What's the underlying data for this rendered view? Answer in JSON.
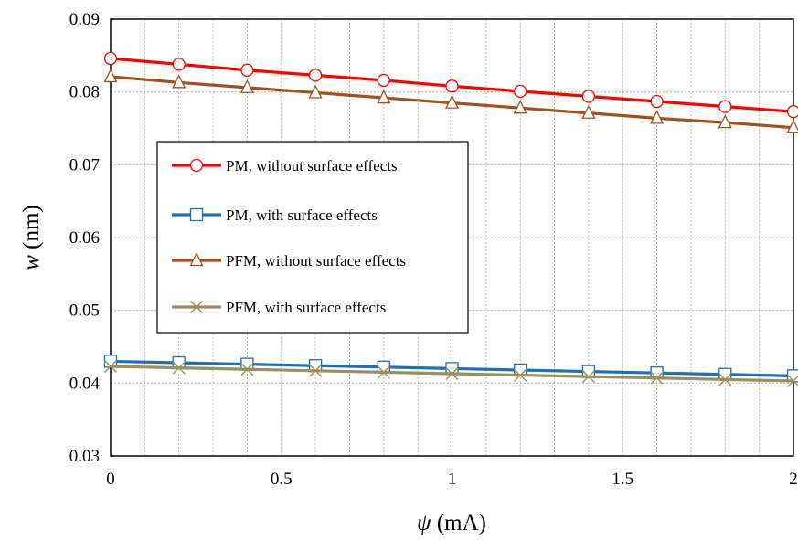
{
  "chart_data": {
    "type": "line",
    "title": "",
    "xlabel": {
      "symbol": "ψ",
      "unit": " (mA)"
    },
    "ylabel": {
      "symbol": "w",
      "unit": " (nm)"
    },
    "xlim": [
      0,
      2
    ],
    "ylim": [
      0.03,
      0.09
    ],
    "x_ticks": [
      "0",
      "0.5",
      "1",
      "1.5",
      "2"
    ],
    "y_ticks": [
      "0.03",
      "0.04",
      "0.05",
      "0.06",
      "0.07",
      "0.08",
      "0.09"
    ],
    "grid": true,
    "legend_position": "center-left",
    "x": [
      0,
      0.2,
      0.4,
      0.6,
      0.8,
      1.0,
      1.2,
      1.4,
      1.6,
      1.8,
      2.0
    ],
    "series": [
      {
        "name": "PM, without surface effects",
        "marker": "circle",
        "color": "#ff0000",
        "values": [
          0.0846,
          0.0838,
          0.083,
          0.0823,
          0.0816,
          0.0808,
          0.0801,
          0.0794,
          0.0787,
          0.078,
          0.0773
        ]
      },
      {
        "name": "PM, with surface effects",
        "marker": "square",
        "color": "#1f6fb5",
        "values": [
          0.043,
          0.0428,
          0.0426,
          0.0424,
          0.0422,
          0.042,
          0.0418,
          0.0416,
          0.0414,
          0.0412,
          0.041
        ]
      },
      {
        "name": "PFM, without surface effects",
        "marker": "triangle",
        "color": "#a0521d",
        "values": [
          0.0821,
          0.0813,
          0.0806,
          0.0799,
          0.0792,
          0.0785,
          0.0778,
          0.0771,
          0.0764,
          0.0758,
          0.0751
        ]
      },
      {
        "name": "PFM, with surface effects",
        "marker": "x",
        "color": "#9c8f5a",
        "values": [
          0.0423,
          0.0421,
          0.0419,
          0.0417,
          0.0415,
          0.0413,
          0.0411,
          0.0409,
          0.0407,
          0.0405,
          0.0403
        ]
      }
    ]
  }
}
